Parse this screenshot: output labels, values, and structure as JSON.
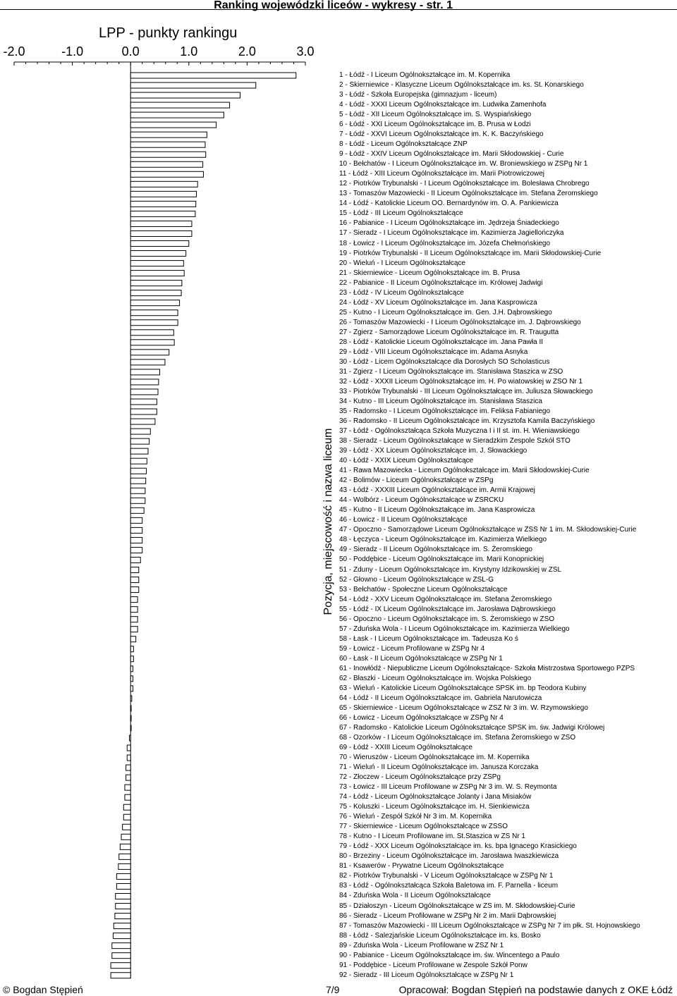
{
  "header": {
    "title": "Ranking wojewódzki liceów - wykresy - str. 1"
  },
  "footer": {
    "copyright": "© Bogdan Stępień",
    "page": "7/9",
    "source": "Opracował: Bogdan Stępień na podstawie danych z OKE Łódź"
  },
  "chart_data": {
    "type": "bar",
    "orientation": "horizontal",
    "title": "LPP - punkty rankingu",
    "ylabel": "Pozycja, miejscowość i nazwa liceum",
    "xlabel": "",
    "xlim": [
      -2.0,
      3.0
    ],
    "x_ticks": [
      "-2.0",
      "-1.0",
      "0.0",
      "1.0",
      "2.0",
      "3.0"
    ],
    "axis_position": "top",
    "grid": false,
    "categories": [
      "1 - Łódź - I Liceum Ogólnokształcące im. M. Kopernika",
      "2 - Skierniewice - Klasyczne Liceum Ogólnokształcące im. ks. St. Konarskiego",
      "3 - Łódź - Szkoła Europejska (gimnazjum - liceum)",
      "4 - Łódź - XXXI Liceum Ogólnokształcące im. Ludwika Zamenhofa",
      "5 - Łódź - XII Liceum Ogólnokształcące im. S. Wyspiańskiego",
      "6 - Łódź - XXI Liceum Ogólnokształcące im. B. Prusa w Łodzi",
      "7 - Łódź - XXVI Liceum Ogólnokształcące im. K. K. Baczyńskiego",
      "8 - Łódź - Liceum Ogólnokształcące ZNP",
      "9 - Łódź - XXIV Liceum Ogólnokształcące im. Marii Skłodowskiej - Curie",
      "10 - Bełchatów - I Liceum Ogólnokształcące im. W. Broniewskiego w ZSPg Nr 1",
      "11 - Łódź - XIII Liceum Ogólnokształcące im. Marii Piotrowiczowej",
      "12 - Piotrków Trybunalski - I Liceum Ogólnokształcące im. Bolesława Chrobrego",
      "13 - Tomaszów Mazowiecki - II Liceum Ogólnokształcące im. Stefana Żeromskiego",
      "14 - Łódź - Katolickie Liceum OO. Bernardynów im. O. A. Pankiewicza",
      "15 - Łódź - III Liceum Ogólnokształcące",
      "16 - Pabianice - I Liceum Ogólnokształcące im. Jędrzeja Śniadeckiego",
      "17 - Sieradz - I Liceum Ogólnokształcące im. Kazimierza Jagiellończyka",
      "18 - Łowicz - I Liceum Ogólnokształcące im. Józefa Chełmońskiego",
      "19 - Piotrków Trybunalski - II Liceum Ogólnokształcące im. Marii Skłodowskiej-Curie",
      "20 - Wieluń - I Liceum Ogólnokształcące",
      "21 - Skierniewice - Liceum Ogólnokształcące im. B. Prusa",
      "22 - Pabianice - II Liceum Ogólnokształcące im. Królowej Jadwigi",
      "23 - Łódź - IV Liceum Ogólnokształcące",
      "24 - Łódź - XV Liceum Ogólnokształcące im. Jana Kasprowicza",
      "25 - Kutno - I Liceum Ogólnokształcące im. Gen. J.H. Dąbrowskiego",
      "26 - Tomaszów Mazowiecki - I Liceum Ogólnokształcące im. J. Dąbrowskiego",
      "27 - Zgierz - Samorządowe Liceum Ogólnokształcące im. R. Traugutta",
      "28 - Łódź - Katolickie Liceum Ogólnokształcące im. Jana Pawła II",
      "29 - Łódź - VIII Liceum Ogólnokształcące im. Adama Asnyka",
      "30 - Łódź - Licem Ogólnokształcące dla Dorosłych SO Scholasticus",
      "31 - Zgierz - I Liceum Ogólnokształcące im. Stanisława Staszica w ZSO",
      "32 - Łódź - XXXII Liceum Ogólnokształcące im. H. Po wiatowskiej w ZSO Nr 1",
      "33 - Piotrków Trybunalski - III Liceum Ogólnokształcące im. Juliusza Słowackiego",
      "34 - Kutno - III Liceum Ogólnokształcące im. Stanisława Staszica",
      "35 - Radomsko - I Liceum Ogólnokształcące im. Feliksa Fabianiego",
      "36 - Radomsko - II Liceum Ogólnokształcące im. Krzysztofa Kamila Baczyńskiego",
      "37 - Łódź - Ogólnokształcąca Szkoła Muzyczna I i II st. im. H. Wieniawskiego",
      "38 - Sieradz - Liceum Ogólnokształcące w Sieradzkim Zespole Szkół STO",
      "39 - Łódź - XX Liceum Ogólnokształcące im. J. Słowackiego",
      "40 - Łódź - XXIX Liceum Ogólnokształcące",
      "41 - Rawa Mazowiecka - Liceum Ogólnokształcące im. Marii Skłodowskiej-Curie",
      "42 - Bolimów - Liceum Ogólnokształcące w ZSPg",
      "43 - Łódź - XXXIII Liceum Ogólnokształcące im. Armii Krajowej",
      "44 - Wolbórz - Liceum Ogólnokształcące w ZSRCKU",
      "45 - Kutno - II Liceum Ogólnokształcące im. Jana Kasprowicza",
      "46 - Łowicz - II Liceum Ogólnokształcące",
      "47 - Opoczno - Samorządowe Liceum Ogólnokształcące w ZSS Nr 1 im. M. Skłodowskiej-Curie",
      "48 - Łęczyca - Liceum Ogólnokształcące im. Kazimierza Wielkiego",
      "49 - Sieradz - II Liceum Ogólnokształcące im. S. Żeromskiego",
      "50 - Poddębice - Liceum Ogólnokształcące im. Marii Konopnickiej",
      "51 - Zduny - Liceum Ogólnokształcące im. Krystyny Idzikowskiej w ZSL",
      "52 - Głowno - Liceum Ogólnokształcące w ZSL-G",
      "53 - Bełchatów - Społeczne Liceum Ogólnokształcące",
      "54 - Łódź - XXV Liceum Ogólnokształcące im. Stefana Żeromskiego",
      "55 - Łódź - IX Liceum Ogólnokształcące im. Jarosława Dąbrowskiego",
      "56 - Opoczno - Liceum Ogólnokształcące im. S. Żeromskiego w ZSO",
      "57 - Zduńska Wola - I Liceum Ogólnokształcące im. Kazimierza Wielkiego",
      "58 - Łask - I Liceum Ogólnokształcące im. Tadeusza Ko ś",
      "59 - Łowicz - Liceum Profilowane w ZSPg Nr 4",
      "60 - Łask - II Liceum Ogólnokształcące w ZSPg Nr 1",
      "61 - Inowłódź - Niepubliczne Liceum Ogólnokształcące- Szkoła Mistrzostwa Sportowego PZPS",
      "62 - Błaszki - Liceum Ogólnokształcące im. Wojska Polskiego",
      "63 - Wieluń - Katolickie Liceum Ogólnokształcące SPSK im. bp Teodora Kubiny",
      "64 - Łódź - II Liceum Ogólnokształcące im. Gabriela Narutowicza",
      "65 - Skierniewice - Liceum Ogólnokształcące w ZSZ Nr 3 im. W. Rzymowskiego",
      "66 - Łowicz - Liceum Ogólnokształcące w ZSPg Nr 4",
      "67 - Radomsko - Katolickie Liceum Ogólnokształcące SPSK im. św. Jadwigi Królowej",
      "68 - Ozorków - I Liceum Ogólnokształcące im. Stefana Żeromskiego w ZSO",
      "69 - Łódź - XXIII Liceum Ogólnokształcące",
      "70 - Wieruszów - Liceum Ogólnokształcące im. M. Kopernika",
      "71 - Wieluń - II Liceum Ogólnokształcące im. Janusza Korczaka",
      "72 - Złoczew - Liceum Ogólnokształcące przy ZSPg",
      "73 - Łowicz - III Liceum Profilowane w ZSPg Nr 3 im. W. S. Reymonta",
      "74 - Łódź - Liceum Ogólnokształcące Jolanty i Jana Misiaków",
      "75 - Koluszki - Liceum Ogólnokształcące im. H. Sienkiewicza",
      "76 - Wieluń - Zespół Szkół Nr 3 im. M. Kopernika",
      "77 - Skierniewice - Liceum Ogólnokształcące w ZSSO",
      "78 - Kutno - I Liceum Profilowane im. St.Staszica w ZS Nr 1",
      "79 - Łódź - XXX Liceum Ogólnokształcące im. ks. bpa Ignacego Krasickiego",
      "80 - Brzeziny - Liceum Ogólnokształcące im. Jarosława Iwaszkiewicza",
      "81 - Ksawerów - Prywatne Liceum Ogólnokształcące",
      "82 - Piotrków Trybunalski - V Liceum Ogólnokształcące w ZSPg Nr 1",
      "83 - Łódź - Ogólnokształcąca Szkoła Baletowa im. F. Parnella - liceum",
      "84 - Zduńska Wola - II Liceum Ogólnokształcące",
      "85 - Działoszyn - Liceum Ogólnokształcące w ZS im. M. Skłodowskiej-Curie",
      "86 - Sieradz - Liceum Profilowane w ZSPg Nr 2 im. Marii Dąbrowskiej",
      "87 - Tomaszów Mazowiecki - III Liceum Ogólnokształcące w ZSPg Nr 7 im płk. St. Hojnowskiego",
      "88 - Łódź - Salezjańskie Liceum Ogólnokształcące im. ks. Bosko",
      "89 - Zduńska Wola - Liceum Profilowane w ZSZ Nr 1",
      "90 - Pabianice - Liceum Ogólnokształcące im. św. Wincentego a Paulo",
      "91 - Poddębice - Liceum Profilowane w Zespole Szkół Ponw",
      "92 - Sieradz - III Liceum Ogólnokształcące w ZSPg Nr 1"
    ],
    "values": [
      2.84,
      2.15,
      1.88,
      1.7,
      1.6,
      1.47,
      1.31,
      1.28,
      1.29,
      1.24,
      1.25,
      1.15,
      1.13,
      1.12,
      1.11,
      1.05,
      1.05,
      1.0,
      0.95,
      0.91,
      0.92,
      0.88,
      0.87,
      0.84,
      0.81,
      0.81,
      0.74,
      0.75,
      0.66,
      0.59,
      0.5,
      0.48,
      0.47,
      0.45,
      0.45,
      0.42,
      0.34,
      0.32,
      0.3,
      0.28,
      0.27,
      0.26,
      0.25,
      0.25,
      0.23,
      0.2,
      0.2,
      0.2,
      0.2,
      0.17,
      0.14,
      0.14,
      0.14,
      0.12,
      0.12,
      0.12,
      0.12,
      0.09,
      0.05,
      0.05,
      0.04,
      0.04,
      0.04,
      0.02,
      0.0,
      0.0,
      0.0,
      -0.02,
      -0.06,
      -0.06,
      -0.08,
      -0.08,
      -0.1,
      -0.1,
      -0.12,
      -0.12,
      -0.14,
      -0.16,
      -0.18,
      -0.2,
      -0.21,
      -0.24,
      -0.24,
      -0.26,
      -0.26,
      -0.27,
      -0.29,
      -0.3,
      -0.32,
      -0.32,
      -0.34,
      -0.34
    ]
  }
}
